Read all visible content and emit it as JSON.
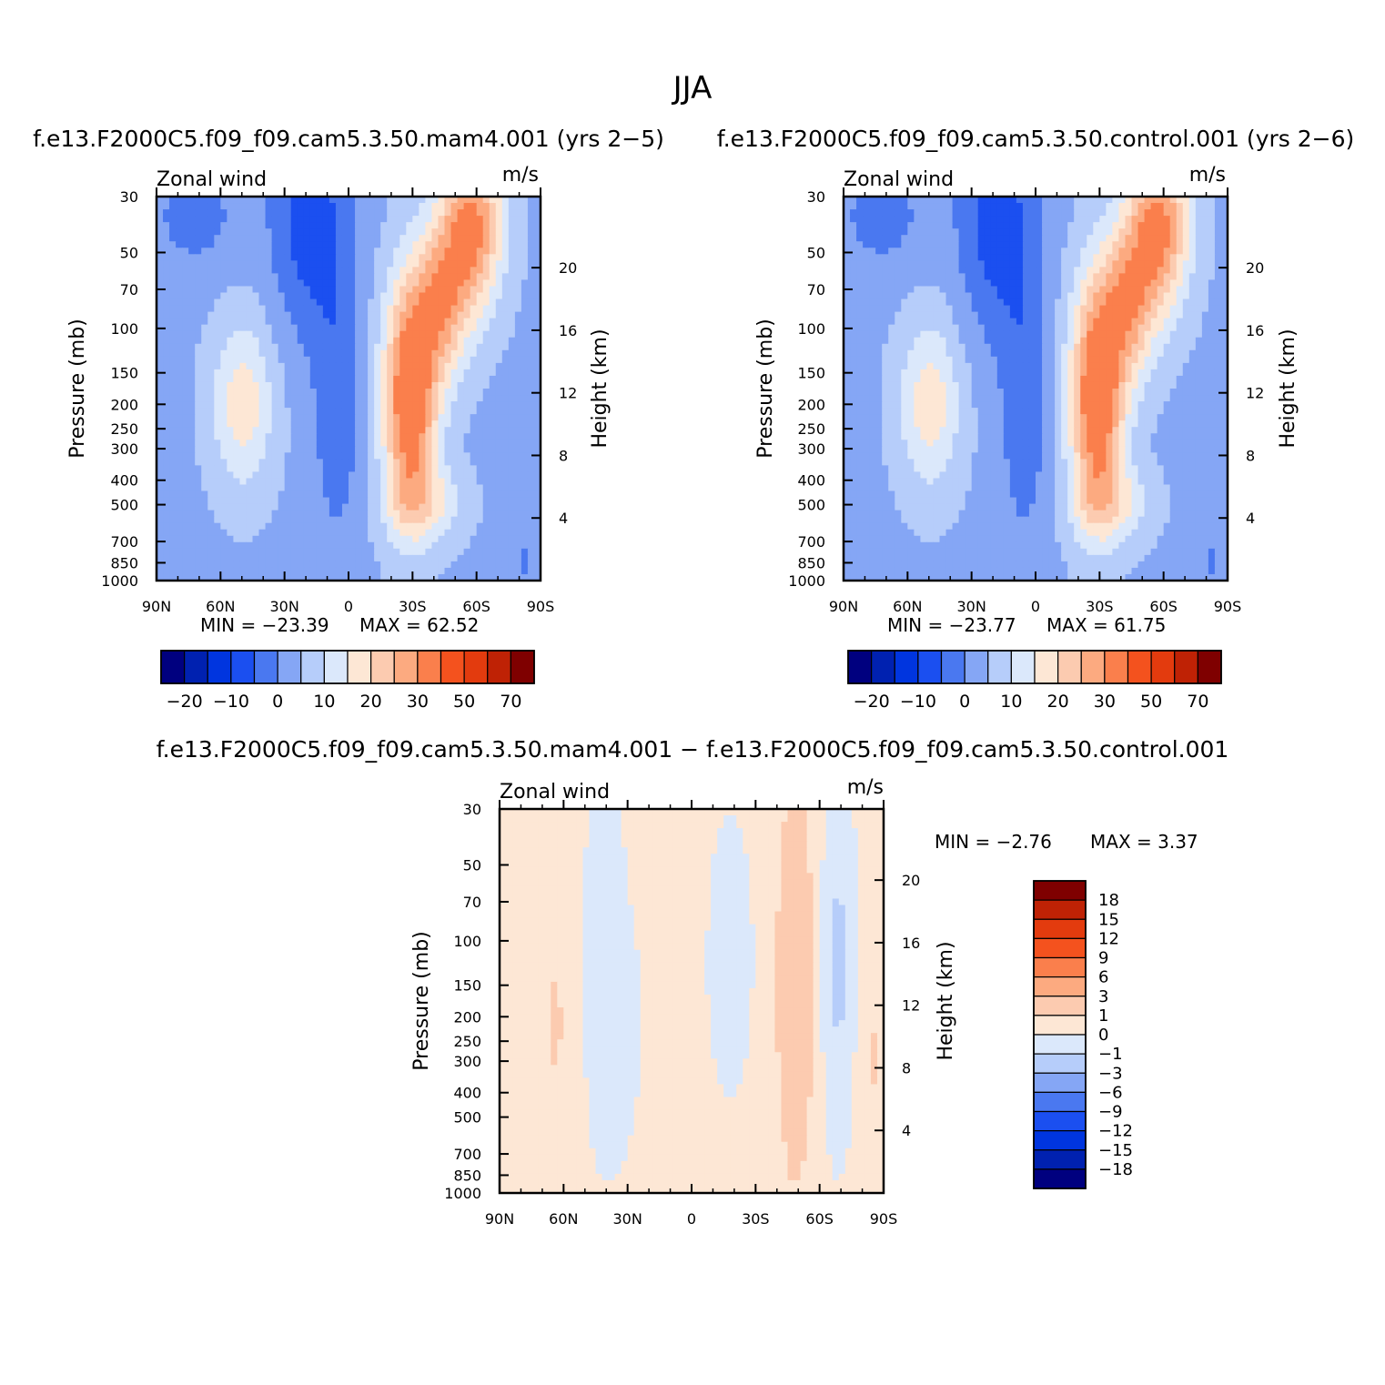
{
  "page": {
    "title": "JJA"
  },
  "colors": {
    "full_fill": [
      "#00007f",
      "#0021b0",
      "#0035df",
      "#1b4ff0",
      "#4a78f0",
      "#85a6f5",
      "#b6cdfa",
      "#dbe8fb",
      "#fde7d5",
      "#fccbb0",
      "#fcaa80",
      "#fa7f4c",
      "#f4521e",
      "#e33b0e",
      "#bf2205",
      "#7f0000"
    ],
    "diff_fill": [
      "#00007f",
      "#0021b0",
      "#0035df",
      "#1b4ff0",
      "#4a78f0",
      "#85a6f5",
      "#b6cdfa",
      "#dbe8fb",
      "#fde7d5",
      "#fccbb0",
      "#fcaa80",
      "#fa7f4c",
      "#f4521e",
      "#e33b0e",
      "#bf2205",
      "#7f0000"
    ]
  },
  "chart_data": [
    {
      "type": "heatmap",
      "id": "mam4",
      "title": "f.e13.F2000C5.f09_f09.cam5.3.50.mam4.001 (yrs 2−5)",
      "left_label": "Zonal wind",
      "units": "m/s",
      "ylabel": "Pressure (mb)",
      "y2label": "Height (km)",
      "x_ticks": [
        "90N",
        "60N",
        "30N",
        "0",
        "30S",
        "60S",
        "90S"
      ],
      "y_ticks": [
        "30",
        "50",
        "70",
        "100",
        "150",
        "200",
        "250",
        "300",
        "400",
        "500",
        "700",
        "850",
        "1000"
      ],
      "y2_ticks": [
        "20",
        "16",
        "12",
        "8",
        "4"
      ],
      "min_label": "MIN = −23.39",
      "max_label": "MAX =   62.52",
      "min": -23.39,
      "max": 62.52,
      "colorbar_labels": [
        "−20",
        "−10",
        "0",
        "10",
        "20",
        "30",
        "50",
        "70"
      ]
    },
    {
      "type": "heatmap",
      "id": "control",
      "title": "f.e13.F2000C5.f09_f09.cam5.3.50.control.001 (yrs 2−6)",
      "left_label": "Zonal wind",
      "units": "m/s",
      "ylabel": "Pressure (mb)",
      "y2label": "Height (km)",
      "x_ticks": [
        "90N",
        "60N",
        "30N",
        "0",
        "30S",
        "60S",
        "90S"
      ],
      "y_ticks": [
        "30",
        "50",
        "70",
        "100",
        "150",
        "200",
        "250",
        "300",
        "400",
        "500",
        "700",
        "850",
        "1000"
      ],
      "y2_ticks": [
        "20",
        "16",
        "12",
        "8",
        "4"
      ],
      "min_label": "MIN = −23.77",
      "max_label": "MAX =   61.75",
      "min": -23.77,
      "max": 61.75,
      "colorbar_labels": [
        "−20",
        "−10",
        "0",
        "10",
        "20",
        "30",
        "50",
        "70"
      ]
    },
    {
      "type": "heatmap",
      "id": "diff",
      "title": "f.e13.F2000C5.f09_f09.cam5.3.50.mam4.001 − f.e13.F2000C5.f09_f09.cam5.3.50.control.001",
      "left_label": "Zonal wind",
      "units": "m/s",
      "ylabel": "Pressure (mb)",
      "y2label": "Height (km)",
      "x_ticks": [
        "90N",
        "60N",
        "30N",
        "0",
        "30S",
        "60S",
        "90S"
      ],
      "y_ticks": [
        "30",
        "50",
        "70",
        "100",
        "150",
        "200",
        "250",
        "300",
        "400",
        "500",
        "700",
        "850",
        "1000"
      ],
      "y2_ticks": [
        "20",
        "16",
        "12",
        "8",
        "4"
      ],
      "min_label": "MIN =    −2.76",
      "max_label": "MAX =     3.37",
      "min": -2.76,
      "max": 3.37,
      "colorbar_labels": [
        "18",
        "15",
        "12",
        "9",
        "6",
        "3",
        "1",
        "0",
        "−1",
        "−3",
        "−6",
        "−9",
        "−12",
        "−15",
        "−18"
      ]
    }
  ]
}
